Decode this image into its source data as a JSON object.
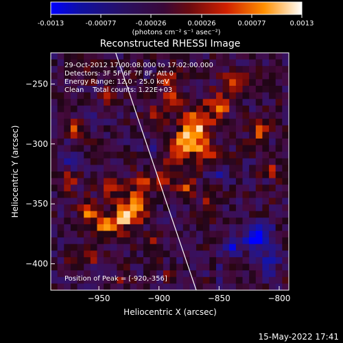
{
  "colorbar": {
    "ticks": [
      "-0.0013",
      "-0.00077",
      "-0.00026",
      "0.00026",
      "0.00077",
      "0.0013"
    ],
    "units": "(photons cm⁻² s⁻¹ asec⁻²)"
  },
  "chart_data": {
    "type": "heatmap",
    "title": "Reconstructed RHESSI Image",
    "xlabel": "Heliocentric X (arcsec)",
    "ylabel": "Heliocentric Y (arcsec)",
    "xlim": [
      -990,
      -792
    ],
    "ylim": [
      -422,
      -224
    ],
    "clim": [
      -0.0013,
      0.0013
    ],
    "x_ticks": [
      "−950",
      "−900",
      "−850",
      "−800"
    ],
    "y_ticks": [
      "−250",
      "−300",
      "−350",
      "−400"
    ],
    "x_tick_values": [
      -950,
      -900,
      -850,
      -800
    ],
    "y_tick_values": [
      -250,
      -300,
      -350,
      -400
    ],
    "peak": [
      -920,
      -356
    ],
    "limb_line": [
      [
        -936,
        -224
      ],
      [
        -869,
        -422
      ]
    ],
    "annotations": {
      "time": "29-Oct-2012 17:00:08.000 to 17:02:00.000",
      "detectors": "Detectors: 3F 5F 6F 7F 8F, Att 0",
      "energy": "Energy Range: 12.0 - 25.0 keV",
      "clean": "Clean    Total counts: 1.22E+03",
      "peak": "Position of Peak = [-920,-356]"
    }
  },
  "footer": {
    "timestamp": "15-May-2022 17:41"
  }
}
